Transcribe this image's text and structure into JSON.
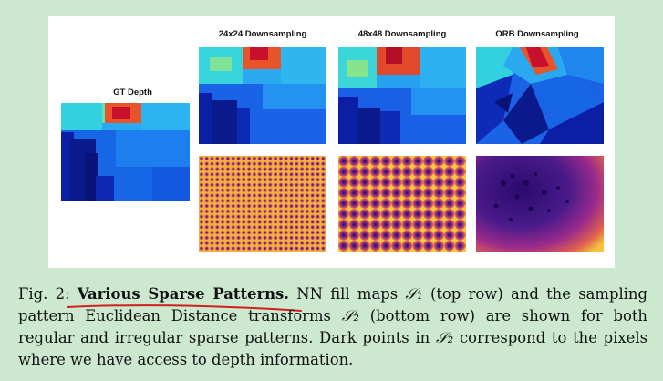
{
  "figure": {
    "gt_title": "GT Depth",
    "columns": [
      {
        "title": "24x24 Downsampling"
      },
      {
        "title": "48x48 Downsampling"
      },
      {
        "title": "ORB Downsampling"
      }
    ]
  },
  "caption": {
    "prefix": "Fig. 2: ",
    "lead": "Various Sparse Patterns.",
    "line1_rest": " NN fill maps ",
    "s1": "𝒮₁",
    "line1_tail": " (top row) and the sampling",
    "line2a": "pattern Euclidean Distance transforms ",
    "s2": "𝒮₂",
    "line2b": " (bottom row) are shown for both",
    "line3": "regular and irregular sparse patterns. Dark points in ",
    "s2b": "𝒮₂",
    "line3b": " correspond to the pixels",
    "line4": "where we have access to depth information."
  },
  "colors": {
    "background": "#cce9cf",
    "panel": "#ffffff",
    "annotation": "#d11f1f",
    "depth_deep": "#0a1a8c",
    "depth_mid": "#1e6cf0",
    "depth_cyan": "#29d3e6",
    "depth_red": "#c8102e",
    "edt_dark": "#2a0b6e",
    "edt_bright": "#f6c33a"
  }
}
